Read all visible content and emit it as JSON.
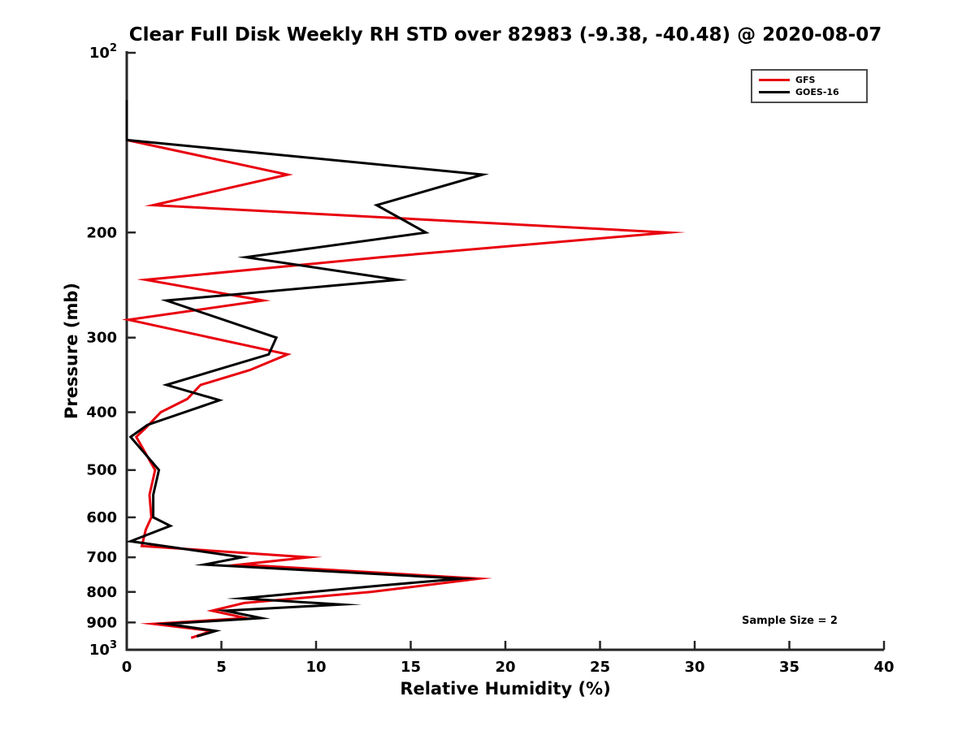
{
  "chart_data": {
    "type": "line",
    "title": "Clear Full Disk Weekly RH STD over 82983 (-9.38, -40.48) @ 2020-08-07",
    "xlabel": "Relative Humidity (%)",
    "ylabel": "Pressure (mb)",
    "xlim": [
      0,
      40
    ],
    "ylim": [
      100,
      1000
    ],
    "yscale": "log",
    "y_inverted": true,
    "grid": false,
    "x_ticks": [
      0,
      5,
      10,
      15,
      20,
      25,
      30,
      35,
      40
    ],
    "y_ticks": [
      100,
      200,
      300,
      400,
      500,
      600,
      700,
      800,
      900,
      1000
    ],
    "y_tick_labels": [
      "10^2",
      "200",
      "300",
      "400",
      "500",
      "600",
      "700",
      "800",
      "900",
      "10^3"
    ],
    "axis_color": "#262626",
    "legend": {
      "position": "top-right"
    },
    "annotation": {
      "text": "Sample Size = 2"
    },
    "series": [
      {
        "name": "GFS",
        "color": "#e8000d",
        "points_format": "[relative_humidity_pct, pressure_mb]",
        "points": [
          [
            0,
            120
          ],
          [
            0,
            140
          ],
          [
            8.5,
            160
          ],
          [
            1.4,
            180
          ],
          [
            28.6,
            200
          ],
          [
            13.4,
            220
          ],
          [
            1.0,
            240
          ],
          [
            7.2,
            260
          ],
          [
            0.1,
            280
          ],
          [
            8.5,
            320
          ],
          [
            6.5,
            340
          ],
          [
            3.9,
            360
          ],
          [
            3.2,
            380
          ],
          [
            1.8,
            400
          ],
          [
            1.0,
            425
          ],
          [
            0.5,
            440
          ],
          [
            1.5,
            500
          ],
          [
            1.2,
            550
          ],
          [
            1.3,
            600
          ],
          [
            1.0,
            630
          ],
          [
            0.8,
            670
          ],
          [
            9.6,
            700
          ],
          [
            6.0,
            720
          ],
          [
            18.6,
            760
          ],
          [
            12.9,
            800
          ],
          [
            6.2,
            835
          ],
          [
            4.5,
            860
          ],
          [
            6.3,
            885
          ],
          [
            1.4,
            905
          ],
          [
            4.5,
            930
          ],
          [
            3.4,
            955
          ]
        ]
      },
      {
        "name": "GOES-16",
        "color": "#000000",
        "points_format": "[relative_humidity_pct, pressure_mb]",
        "points": [
          [
            0,
            120
          ],
          [
            0,
            140
          ],
          [
            18.8,
            160
          ],
          [
            13.2,
            180
          ],
          [
            15.8,
            200
          ],
          [
            6.3,
            220
          ],
          [
            14.3,
            240
          ],
          [
            2.1,
            260
          ],
          [
            7.9,
            300
          ],
          [
            7.5,
            320
          ],
          [
            2.1,
            360
          ],
          [
            4.9,
            382
          ],
          [
            1.1,
            420
          ],
          [
            0.2,
            440
          ],
          [
            1.7,
            500
          ],
          [
            1.4,
            550
          ],
          [
            1.4,
            600
          ],
          [
            2.3,
            620
          ],
          [
            0.2,
            658
          ],
          [
            6.1,
            700
          ],
          [
            4.1,
            720
          ],
          [
            17.7,
            760
          ],
          [
            13.5,
            780
          ],
          [
            6.1,
            820
          ],
          [
            11.3,
            840
          ],
          [
            5.2,
            860
          ],
          [
            7.1,
            885
          ],
          [
            2.1,
            905
          ],
          [
            4.7,
            930
          ],
          [
            3.7,
            950
          ]
        ]
      }
    ]
  }
}
